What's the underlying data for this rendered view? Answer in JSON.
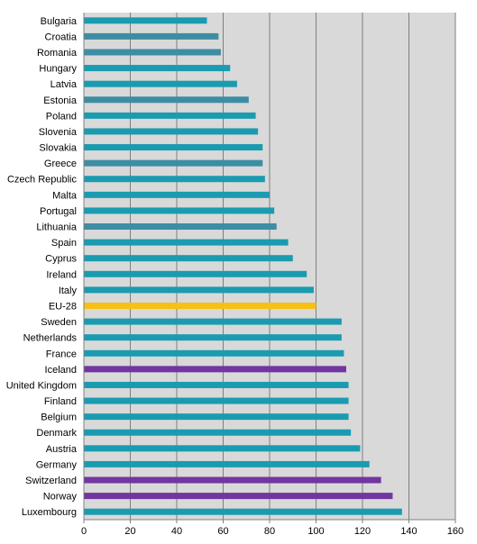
{
  "chart_data": {
    "type": "bar",
    "orientation": "horizontal",
    "title": "",
    "xlabel": "",
    "ylabel": "",
    "xlim": [
      0,
      160
    ],
    "xticks": [
      0,
      20,
      40,
      60,
      80,
      100,
      120,
      140,
      160
    ],
    "grid": "vertical lines at major ticks",
    "plot_background": "#d9d9d9",
    "colors": {
      "EU member": "#1a9bb0",
      "EU member (alt shade)": "#3d8da3",
      "EU-28": "#f7c012",
      "EFTA": "#7236a0"
    },
    "categories": [
      "Bulgaria",
      "Croatia",
      "Romania",
      "Hungary",
      "Latvia",
      "Estonia",
      "Poland",
      "Slovenia",
      "Slovakia",
      "Greece",
      "Czech Republic",
      "Malta",
      "Portugal",
      "Lithuania",
      "Spain",
      "Cyprus",
      "Ireland",
      "Italy",
      "EU-28",
      "Sweden",
      "Netherlands",
      "France",
      "Iceland",
      "United Kingdom",
      "Finland",
      "Belgium",
      "Denmark",
      "Austria",
      "Germany",
      "Switzerland",
      "Norway",
      "Luxembourg"
    ],
    "values": [
      53,
      58,
      59,
      63,
      66,
      71,
      74,
      75,
      77,
      77,
      78,
      80,
      82,
      83,
      88,
      90,
      96,
      99,
      100,
      111,
      111,
      112,
      113,
      114,
      114,
      114,
      115,
      119,
      123,
      128,
      133,
      137
    ],
    "bar_colors": [
      "#1a9bb0",
      "#3d8da3",
      "#3d8da3",
      "#1a9bb0",
      "#1a9bb0",
      "#3d8da3",
      "#1a9bb0",
      "#1a9bb0",
      "#1a9bb0",
      "#3d8da3",
      "#1a9bb0",
      "#1a9bb0",
      "#1a9bb0",
      "#3d8da3",
      "#1a9bb0",
      "#1a9bb0",
      "#1a9bb0",
      "#1a9bb0",
      "#f7c012",
      "#1a9bb0",
      "#1a9bb0",
      "#1a9bb0",
      "#7236a0",
      "#1a9bb0",
      "#1a9bb0",
      "#1a9bb0",
      "#1a9bb0",
      "#1a9bb0",
      "#1a9bb0",
      "#7236a0",
      "#7236a0",
      "#1a9bb0"
    ]
  }
}
